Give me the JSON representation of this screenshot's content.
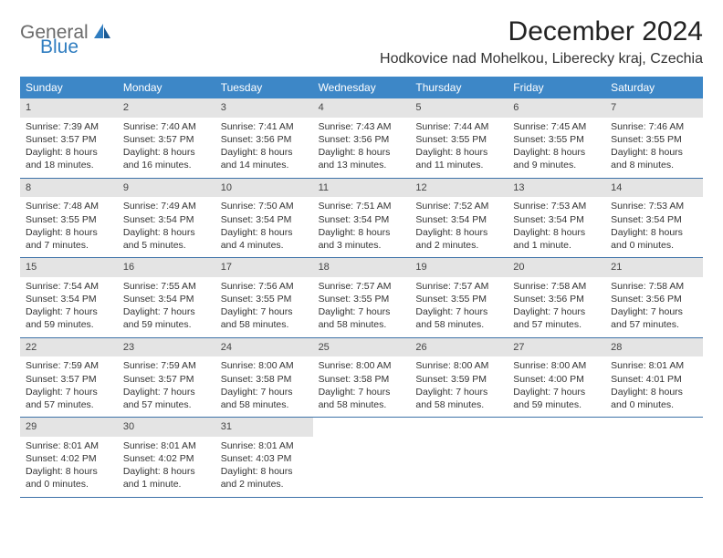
{
  "brand": {
    "general": "General",
    "blue": "Blue"
  },
  "title": "December 2024",
  "location": "Hodkovice nad Mohelkou, Liberecky kraj, Czechia",
  "colors": {
    "header_bg": "#3d87c7",
    "header_text": "#ffffff",
    "date_bg": "#e4e4e4",
    "week_border": "#3d72a8",
    "logo_gray": "#6a6a6a",
    "logo_blue": "#2f7dc0"
  },
  "day_names": [
    "Sunday",
    "Monday",
    "Tuesday",
    "Wednesday",
    "Thursday",
    "Friday",
    "Saturday"
  ],
  "weeks": [
    [
      {
        "n": "1",
        "sr": "Sunrise: 7:39 AM",
        "ss": "Sunset: 3:57 PM",
        "dl": "Daylight: 8 hours and 18 minutes."
      },
      {
        "n": "2",
        "sr": "Sunrise: 7:40 AM",
        "ss": "Sunset: 3:57 PM",
        "dl": "Daylight: 8 hours and 16 minutes."
      },
      {
        "n": "3",
        "sr": "Sunrise: 7:41 AM",
        "ss": "Sunset: 3:56 PM",
        "dl": "Daylight: 8 hours and 14 minutes."
      },
      {
        "n": "4",
        "sr": "Sunrise: 7:43 AM",
        "ss": "Sunset: 3:56 PM",
        "dl": "Daylight: 8 hours and 13 minutes."
      },
      {
        "n": "5",
        "sr": "Sunrise: 7:44 AM",
        "ss": "Sunset: 3:55 PM",
        "dl": "Daylight: 8 hours and 11 minutes."
      },
      {
        "n": "6",
        "sr": "Sunrise: 7:45 AM",
        "ss": "Sunset: 3:55 PM",
        "dl": "Daylight: 8 hours and 9 minutes."
      },
      {
        "n": "7",
        "sr": "Sunrise: 7:46 AM",
        "ss": "Sunset: 3:55 PM",
        "dl": "Daylight: 8 hours and 8 minutes."
      }
    ],
    [
      {
        "n": "8",
        "sr": "Sunrise: 7:48 AM",
        "ss": "Sunset: 3:55 PM",
        "dl": "Daylight: 8 hours and 7 minutes."
      },
      {
        "n": "9",
        "sr": "Sunrise: 7:49 AM",
        "ss": "Sunset: 3:54 PM",
        "dl": "Daylight: 8 hours and 5 minutes."
      },
      {
        "n": "10",
        "sr": "Sunrise: 7:50 AM",
        "ss": "Sunset: 3:54 PM",
        "dl": "Daylight: 8 hours and 4 minutes."
      },
      {
        "n": "11",
        "sr": "Sunrise: 7:51 AM",
        "ss": "Sunset: 3:54 PM",
        "dl": "Daylight: 8 hours and 3 minutes."
      },
      {
        "n": "12",
        "sr": "Sunrise: 7:52 AM",
        "ss": "Sunset: 3:54 PM",
        "dl": "Daylight: 8 hours and 2 minutes."
      },
      {
        "n": "13",
        "sr": "Sunrise: 7:53 AM",
        "ss": "Sunset: 3:54 PM",
        "dl": "Daylight: 8 hours and 1 minute."
      },
      {
        "n": "14",
        "sr": "Sunrise: 7:53 AM",
        "ss": "Sunset: 3:54 PM",
        "dl": "Daylight: 8 hours and 0 minutes."
      }
    ],
    [
      {
        "n": "15",
        "sr": "Sunrise: 7:54 AM",
        "ss": "Sunset: 3:54 PM",
        "dl": "Daylight: 7 hours and 59 minutes."
      },
      {
        "n": "16",
        "sr": "Sunrise: 7:55 AM",
        "ss": "Sunset: 3:54 PM",
        "dl": "Daylight: 7 hours and 59 minutes."
      },
      {
        "n": "17",
        "sr": "Sunrise: 7:56 AM",
        "ss": "Sunset: 3:55 PM",
        "dl": "Daylight: 7 hours and 58 minutes."
      },
      {
        "n": "18",
        "sr": "Sunrise: 7:57 AM",
        "ss": "Sunset: 3:55 PM",
        "dl": "Daylight: 7 hours and 58 minutes."
      },
      {
        "n": "19",
        "sr": "Sunrise: 7:57 AM",
        "ss": "Sunset: 3:55 PM",
        "dl": "Daylight: 7 hours and 58 minutes."
      },
      {
        "n": "20",
        "sr": "Sunrise: 7:58 AM",
        "ss": "Sunset: 3:56 PM",
        "dl": "Daylight: 7 hours and 57 minutes."
      },
      {
        "n": "21",
        "sr": "Sunrise: 7:58 AM",
        "ss": "Sunset: 3:56 PM",
        "dl": "Daylight: 7 hours and 57 minutes."
      }
    ],
    [
      {
        "n": "22",
        "sr": "Sunrise: 7:59 AM",
        "ss": "Sunset: 3:57 PM",
        "dl": "Daylight: 7 hours and 57 minutes."
      },
      {
        "n": "23",
        "sr": "Sunrise: 7:59 AM",
        "ss": "Sunset: 3:57 PM",
        "dl": "Daylight: 7 hours and 57 minutes."
      },
      {
        "n": "24",
        "sr": "Sunrise: 8:00 AM",
        "ss": "Sunset: 3:58 PM",
        "dl": "Daylight: 7 hours and 58 minutes."
      },
      {
        "n": "25",
        "sr": "Sunrise: 8:00 AM",
        "ss": "Sunset: 3:58 PM",
        "dl": "Daylight: 7 hours and 58 minutes."
      },
      {
        "n": "26",
        "sr": "Sunrise: 8:00 AM",
        "ss": "Sunset: 3:59 PM",
        "dl": "Daylight: 7 hours and 58 minutes."
      },
      {
        "n": "27",
        "sr": "Sunrise: 8:00 AM",
        "ss": "Sunset: 4:00 PM",
        "dl": "Daylight: 7 hours and 59 minutes."
      },
      {
        "n": "28",
        "sr": "Sunrise: 8:01 AM",
        "ss": "Sunset: 4:01 PM",
        "dl": "Daylight: 8 hours and 0 minutes."
      }
    ],
    [
      {
        "n": "29",
        "sr": "Sunrise: 8:01 AM",
        "ss": "Sunset: 4:02 PM",
        "dl": "Daylight: 8 hours and 0 minutes."
      },
      {
        "n": "30",
        "sr": "Sunrise: 8:01 AM",
        "ss": "Sunset: 4:02 PM",
        "dl": "Daylight: 8 hours and 1 minute."
      },
      {
        "n": "31",
        "sr": "Sunrise: 8:01 AM",
        "ss": "Sunset: 4:03 PM",
        "dl": "Daylight: 8 hours and 2 minutes."
      },
      null,
      null,
      null,
      null
    ]
  ]
}
